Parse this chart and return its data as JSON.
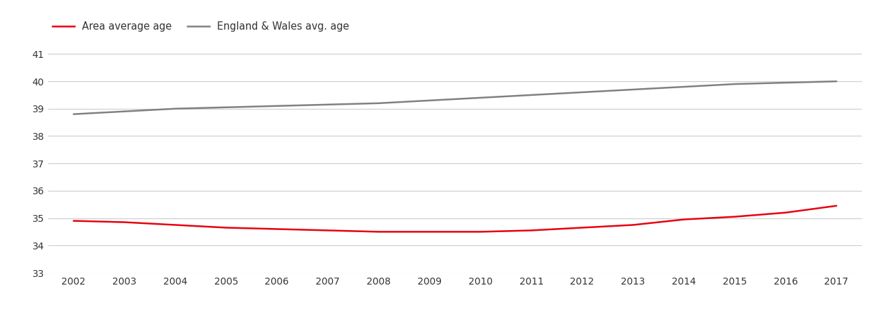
{
  "years": [
    2002,
    2003,
    2004,
    2005,
    2006,
    2007,
    2008,
    2009,
    2010,
    2011,
    2012,
    2013,
    2014,
    2015,
    2016,
    2017
  ],
  "area_avg_age": [
    34.9,
    34.85,
    34.75,
    34.65,
    34.6,
    34.55,
    34.5,
    34.5,
    34.5,
    34.55,
    34.65,
    34.75,
    34.95,
    35.05,
    35.2,
    35.45
  ],
  "ew_avg_age": [
    38.8,
    38.9,
    39.0,
    39.05,
    39.1,
    39.15,
    39.2,
    39.3,
    39.4,
    39.5,
    39.6,
    39.7,
    39.8,
    39.9,
    39.95,
    40.0
  ],
  "area_label": "Area average age",
  "ew_label": "England & Wales avg. age",
  "area_color": "#e8000d",
  "ew_color": "#808080",
  "ylim": [
    33,
    41.5
  ],
  "yticks": [
    33,
    34,
    35,
    36,
    37,
    38,
    39,
    40,
    41
  ],
  "xlim": [
    2001.5,
    2017.5
  ],
  "xticks": [
    2002,
    2003,
    2004,
    2005,
    2006,
    2007,
    2008,
    2009,
    2010,
    2011,
    2012,
    2013,
    2014,
    2015,
    2016,
    2017
  ],
  "line_width": 1.8,
  "background_color": "#ffffff",
  "grid_color": "#cccccc",
  "tick_label_color": "#333333",
  "legend_fontsize": 10.5,
  "tick_fontsize": 10
}
